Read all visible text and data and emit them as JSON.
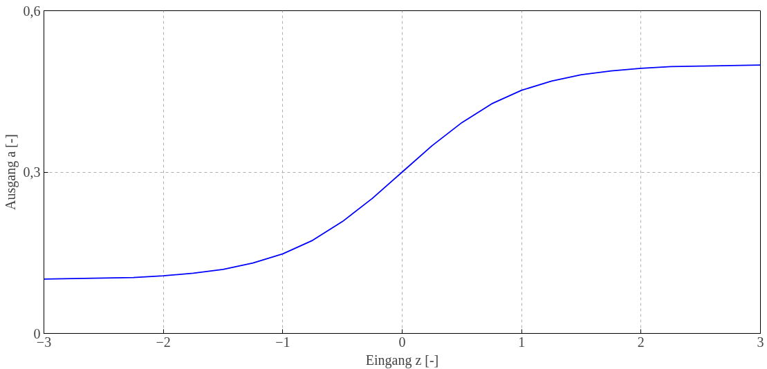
{
  "chart_data": {
    "type": "line",
    "xlabel": "Eingang z [-]",
    "ylabel": "Ausgang a [-]",
    "x": [
      -3,
      -2.75,
      -2.5,
      -2.25,
      -2,
      -1.75,
      -1.5,
      -1.25,
      -1,
      -0.75,
      -0.5,
      -0.25,
      0,
      0.25,
      0.5,
      0.75,
      1,
      1.25,
      1.5,
      1.75,
      2,
      2.25,
      2.5,
      2.75,
      3
    ],
    "series": [
      {
        "color": "#0000ff",
        "values": [
          0.101,
          0.102,
          0.103,
          0.104,
          0.107,
          0.112,
          0.119,
          0.131,
          0.148,
          0.173,
          0.208,
          0.251,
          0.3,
          0.349,
          0.392,
          0.427,
          0.452,
          0.469,
          0.481,
          0.488,
          0.493,
          0.496,
          0.497,
          0.498,
          0.499
        ]
      }
    ],
    "xlim": [
      -3,
      3
    ],
    "ylim": [
      0,
      0.6
    ],
    "xticks": [
      {
        "value": -3,
        "label": "−3"
      },
      {
        "value": -2,
        "label": "−2"
      },
      {
        "value": -1,
        "label": "−1"
      },
      0,
      1,
      2,
      3
    ],
    "yticks": [
      0,
      {
        "value": 0.3,
        "label": "0,3"
      },
      {
        "value": 0.6,
        "label": "0,6"
      }
    ],
    "grid": true,
    "marker": "none",
    "line_style": "solid"
  }
}
